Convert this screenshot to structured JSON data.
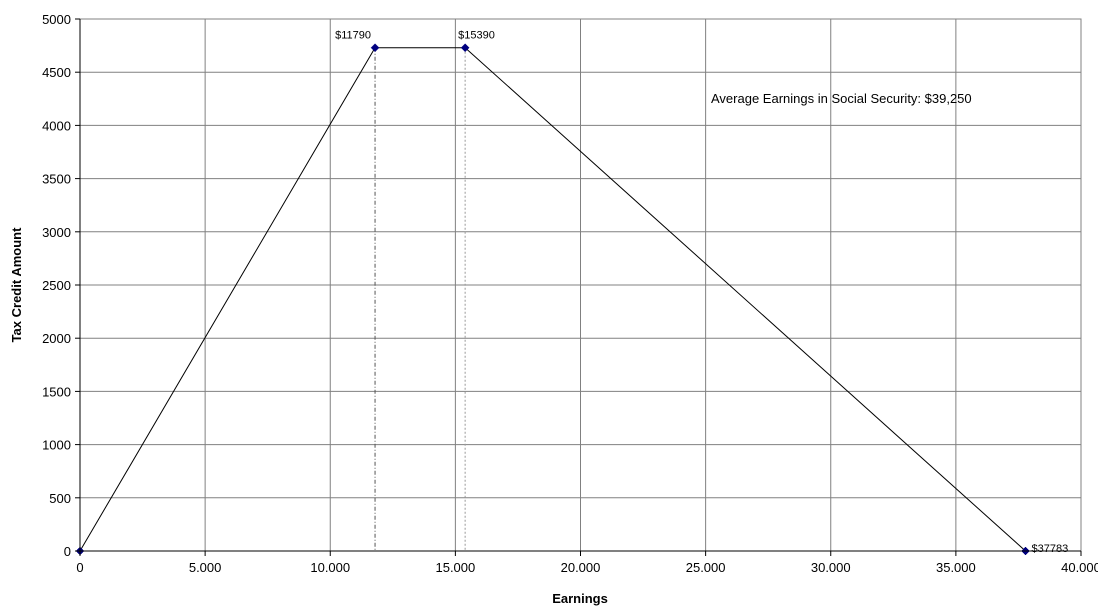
{
  "chart_data": {
    "type": "line",
    "title": "",
    "xlabel": "Earnings",
    "ylabel": "Tax Credit Amount",
    "xlim": [
      0,
      40000
    ],
    "ylim": [
      0,
      5000
    ],
    "x_ticks": [
      0,
      5000,
      10000,
      15000,
      20000,
      25000,
      30000,
      35000,
      40000
    ],
    "x_tick_labels": [
      "0",
      "5.000",
      "10.000",
      "15.000",
      "20.000",
      "25.000",
      "30.000",
      "35.000",
      "40.000"
    ],
    "y_ticks": [
      0,
      500,
      1000,
      1500,
      2000,
      2500,
      3000,
      3500,
      4000,
      4500,
      5000
    ],
    "y_tick_labels": [
      "0",
      "500",
      "1000",
      "1500",
      "2000",
      "2500",
      "3000",
      "3500",
      "4000",
      "4500",
      "5000"
    ],
    "grid": true,
    "legend": "none",
    "series": [
      {
        "x": [
          0,
          11790,
          15390,
          37783
        ],
        "y": [
          0,
          4730,
          4730,
          0
        ],
        "point_labels": [
          "",
          "$11790",
          "$15390",
          "$37783"
        ],
        "color": "#000000",
        "marker_color": "#000080"
      }
    ],
    "reference_lines": [
      11790,
      15390
    ],
    "annotation": "Average Earnings in Social Security: $39,250"
  }
}
